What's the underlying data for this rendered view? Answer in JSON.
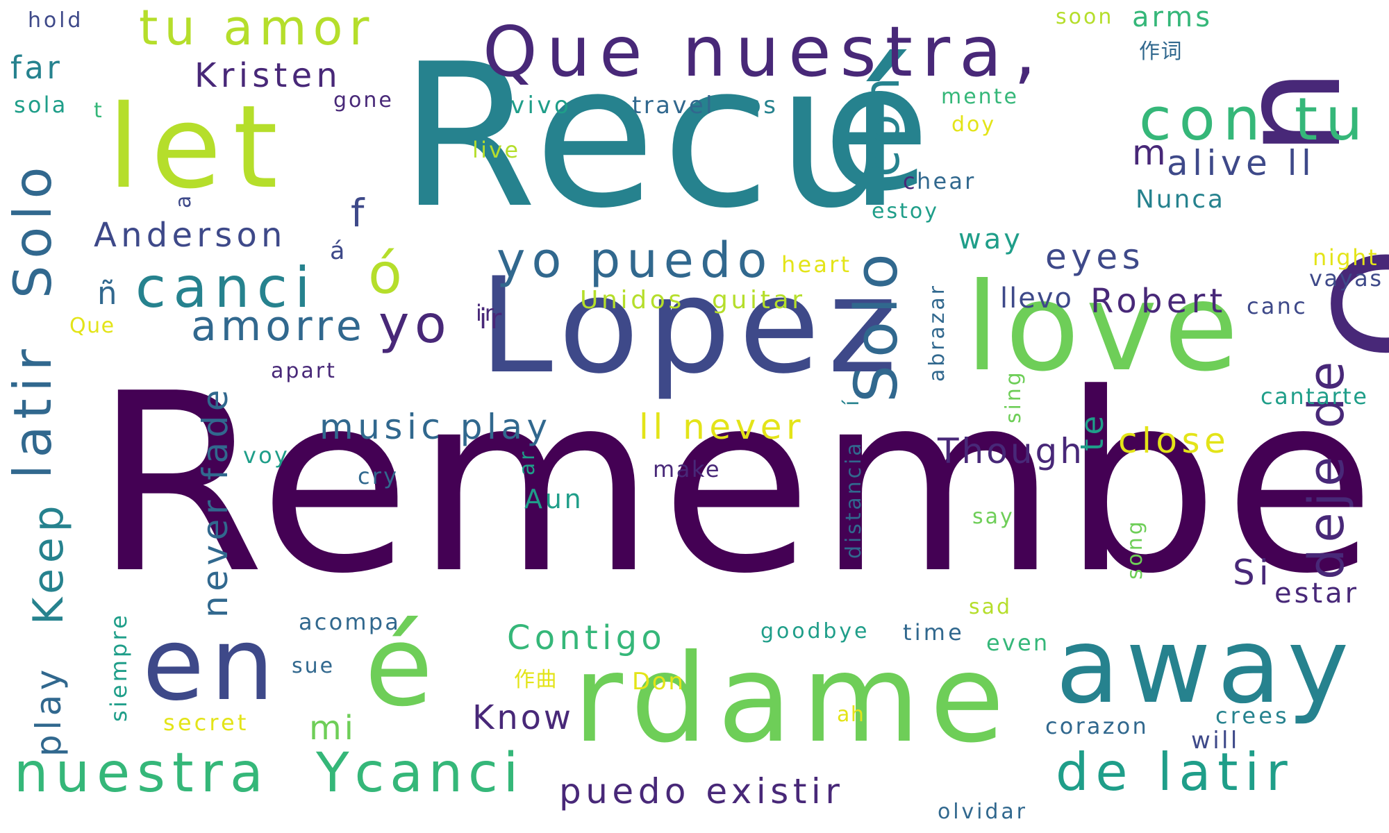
{
  "palette": {
    "c1": "#440154",
    "c2": "#482878",
    "c3": "#3e4989",
    "c4": "#31688e",
    "c5": "#26828e",
    "c6": "#1f9e89",
    "c7": "#35b779",
    "c8": "#6ece58",
    "c9": "#b5de2b",
    "c10": "#e3e418"
  },
  "words": {
    "remember": "Remember",
    "recu": "Recu",
    "e_accent_big": "é",
    "n_big": "n",
    "o_big": "O",
    "lopez": "Lopez",
    "let": "let",
    "love": "love",
    "rdame": "rdame",
    "away": "away",
    "en": "en",
    "e_accent_mid": "é",
    "que_nuestra": "Que nuestra",
    "comma": ",",
    "con_tu": "con tu",
    "solo_left": "Solo",
    "solo_mid": "Solo",
    "solo_con": "con",
    "latir_left": "latir",
    "keep": "Keep",
    "play_left": "play",
    "tu_amor": "tu amor",
    "kristen": "Kristen",
    "anderson": "Anderson",
    "hold": "hold",
    "far": "far",
    "sola": "sola",
    "t_small": "t",
    "gone": "gone",
    "vivo": "vivo",
    "travel": "travel",
    "os": "os",
    "live": "live",
    "a_small": "a",
    "f_small": "f",
    "canci_top": "canci",
    "o_accent": "ó",
    "a_accent": "á",
    "n_tilde": "ñ",
    "que_small": "Que",
    "amorre": "amorre",
    "yo_mid": "yo",
    "ir_small": "ir",
    "yo_puedo": "yo puedo",
    "heart": "heart",
    "unidos": "Unidos",
    "guitar": "guitar",
    "apart": "apart",
    "music_play": "music play",
    "never_fade": "never fade",
    "ll_never": "ll never",
    "voy": "voy",
    "cry": "cry",
    "ar_small": "ar",
    "make": "make",
    "aun": "Aun",
    "contigo": "Contigo",
    "acompa": "acompa",
    "sue": "sue",
    "siempre": "siempre",
    "secret": "secret",
    "mi": "mi",
    "know": "Know",
    "zuoqu": "作曲",
    "don": "Don",
    "ah": "ah",
    "nuestra_bottom": "nuestra",
    "y_canci": "Ycanci",
    "puedo_existir": "puedo existir",
    "olvidar": "olvidar",
    "de_latir": "de latir",
    "corazon": "corazon",
    "will": "will",
    "crees": "crees",
    "goodbye": "goodbye",
    "time": "time",
    "sad": "sad",
    "even": "even",
    "say": "say",
    "song": "song",
    "distancia": "distancia",
    "i_accent": "í",
    "abrazar": "abrazar",
    "sing": "sing",
    "te": "te",
    "though": "Though",
    "close": "close",
    "si": "Si",
    "estar": "estar",
    "deje_de": "deje de",
    "cantarte": "cantarte",
    "llevo": "llevo",
    "robert": "Robert",
    "canc": "canc",
    "vayas": "vayas",
    "night": "night",
    "eyes": "eyes",
    "way": "way",
    "estoy": "estoy",
    "hear": "hear",
    "c_small": "c",
    "nunca": "Nunca",
    "m_small": "m",
    "alive_ll": "alive ll",
    "doy": "doy",
    "mente": "mente",
    "soon": "soon",
    "arms": "arms",
    "zuoci": "作词"
  }
}
